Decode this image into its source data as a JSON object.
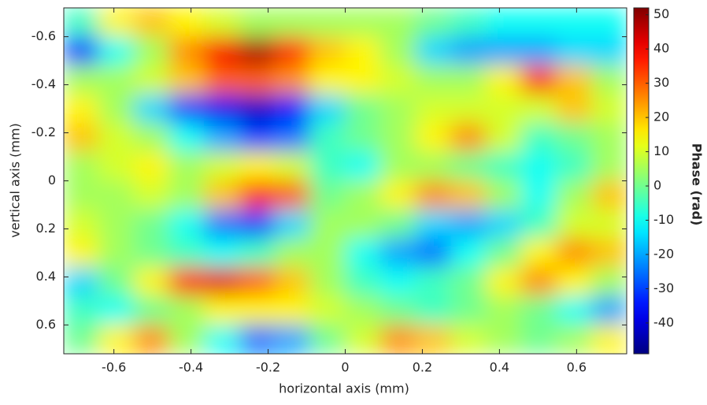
{
  "chart_data": {
    "type": "heatmap",
    "xlabel": "horizontal axis (mm)",
    "ylabel": "vertical axis (mm)",
    "colorbar_label": "Phase (rad)",
    "colormap": "jet",
    "y_reversed": true,
    "x": [
      -0.685,
      -0.594,
      -0.502,
      -0.411,
      -0.32,
      -0.228,
      -0.137,
      -0.046,
      0.046,
      0.137,
      0.228,
      0.32,
      0.411,
      0.502,
      0.594,
      0.685
    ],
    "y": [
      -0.66,
      -0.54,
      -0.42,
      -0.3,
      -0.18,
      -0.06,
      0.06,
      0.18,
      0.3,
      0.42,
      0.54,
      0.66
    ],
    "z": [
      [
        -5,
        15,
        20,
        15,
        10,
        5,
        5,
        5,
        5,
        5,
        0,
        -5,
        -10,
        -10,
        -10,
        -10
      ],
      [
        -30,
        -10,
        5,
        25,
        40,
        48,
        35,
        20,
        15,
        5,
        -15,
        -20,
        -20,
        -20,
        -15,
        -15
      ],
      [
        5,
        5,
        10,
        20,
        30,
        30,
        25,
        15,
        15,
        10,
        5,
        5,
        15,
        35,
        20,
        5
      ],
      [
        15,
        5,
        -15,
        -30,
        -38,
        -42,
        -35,
        -15,
        0,
        5,
        10,
        10,
        10,
        10,
        20,
        10
      ],
      [
        20,
        10,
        5,
        -10,
        -20,
        -30,
        -25,
        -5,
        0,
        5,
        15,
        25,
        10,
        -5,
        0,
        5
      ],
      [
        5,
        10,
        15,
        5,
        10,
        15,
        10,
        -5,
        -10,
        5,
        5,
        0,
        -5,
        -10,
        -5,
        5
      ],
      [
        5,
        5,
        10,
        5,
        20,
        35,
        30,
        0,
        5,
        15,
        25,
        20,
        5,
        -10,
        5,
        20
      ],
      [
        10,
        5,
        0,
        -10,
        -25,
        -30,
        -15,
        5,
        5,
        0,
        -15,
        -20,
        -15,
        -5,
        10,
        10
      ],
      [
        15,
        5,
        0,
        -5,
        -10,
        -5,
        5,
        5,
        -10,
        -20,
        -25,
        -10,
        0,
        15,
        25,
        20
      ],
      [
        -15,
        0,
        15,
        35,
        42,
        30,
        20,
        5,
        -5,
        -10,
        -5,
        0,
        15,
        25,
        15,
        5
      ],
      [
        -5,
        -10,
        0,
        5,
        15,
        15,
        15,
        10,
        5,
        0,
        -5,
        0,
        5,
        0,
        -10,
        -20
      ],
      [
        0,
        15,
        25,
        5,
        -10,
        -25,
        -20,
        0,
        10,
        25,
        20,
        10,
        5,
        0,
        5,
        15
      ]
    ],
    "xlim": [
      -0.73,
      0.73
    ],
    "ylim": [
      -0.72,
      0.72
    ],
    "xticks": [
      -0.6,
      -0.4,
      -0.2,
      0,
      0.2,
      0.4,
      0.6
    ],
    "yticks": [
      -0.6,
      -0.4,
      -0.2,
      0,
      0.2,
      0.4,
      0.6
    ],
    "clim": [
      -49,
      52
    ],
    "cticks": [
      -40,
      -30,
      -20,
      -10,
      0,
      10,
      20,
      30,
      40,
      50
    ]
  }
}
